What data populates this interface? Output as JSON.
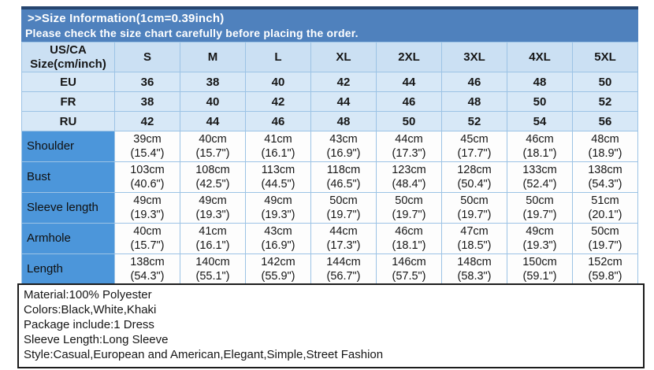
{
  "banner": {
    "line1": ">>Size Information(1cm=0.39inch)",
    "line2": "Please check the size chart carefully before placing the order."
  },
  "size_chart": {
    "corner_label_line1": "US/CA",
    "corner_label_line2": "Size(cm/inch)",
    "size_headers": [
      "S",
      "M",
      "L",
      "XL",
      "2XL",
      "3XL",
      "4XL",
      "5XL"
    ],
    "region_rows": [
      {
        "label": "EU",
        "values": [
          "36",
          "38",
          "40",
          "42",
          "44",
          "46",
          "48",
          "50"
        ]
      },
      {
        "label": "FR",
        "values": [
          "38",
          "40",
          "42",
          "44",
          "46",
          "48",
          "50",
          "52"
        ]
      },
      {
        "label": "RU",
        "values": [
          "42",
          "44",
          "46",
          "48",
          "50",
          "52",
          "54",
          "56"
        ]
      }
    ],
    "measurement_rows": [
      {
        "label": "Shoulder",
        "cm": [
          "39cm",
          "40cm",
          "41cm",
          "43cm",
          "44cm",
          "45cm",
          "46cm",
          "48cm"
        ],
        "inch": [
          "(15.4\")",
          "(15.7\")",
          "(16.1\")",
          "(16.9\")",
          "(17.3\")",
          "(17.7\")",
          "(18.1\")",
          "(18.9\")"
        ]
      },
      {
        "label": "Bust",
        "cm": [
          "103cm",
          "108cm",
          "113cm",
          "118cm",
          "123cm",
          "128cm",
          "133cm",
          "138cm"
        ],
        "inch": [
          "(40.6\")",
          "(42.5\")",
          "(44.5\")",
          "(46.5\")",
          "(48.4\")",
          "(50.4\")",
          "(52.4\")",
          "(54.3\")"
        ]
      },
      {
        "label": "Sleeve length",
        "cm": [
          "49cm",
          "49cm",
          "49cm",
          "50cm",
          "50cm",
          "50cm",
          "50cm",
          "51cm"
        ],
        "inch": [
          "(19.3\")",
          "(19.3\")",
          "(19.3\")",
          "(19.7\")",
          "(19.7\")",
          "(19.7\")",
          "(19.7\")",
          "(20.1\")"
        ]
      },
      {
        "label": "Armhole",
        "cm": [
          "40cm",
          "41cm",
          "43cm",
          "44cm",
          "46cm",
          "47cm",
          "49cm",
          "50cm"
        ],
        "inch": [
          "(15.7\")",
          "(16.1\")",
          "(16.9\")",
          "(17.3\")",
          "(18.1\")",
          "(18.5\")",
          "(19.3\")",
          "(19.7\")"
        ]
      },
      {
        "label": "Length",
        "cm": [
          "138cm",
          "140cm",
          "142cm",
          "144cm",
          "146cm",
          "148cm",
          "150cm",
          "152cm"
        ],
        "inch": [
          "(54.3\")",
          "(55.1\")",
          "(55.9\")",
          "(56.7\")",
          "(57.5\")",
          "(58.3\")",
          "(59.1\")",
          "(59.8\")"
        ]
      }
    ]
  },
  "product_info": {
    "lines": [
      "Material:100% Polyester",
      "Colors:Black,White,Khaki",
      "Package include:1 Dress",
      "Sleeve Length:Long Sleeve",
      "Style:Casual,European and American,Elegant,Simple,Street Fashion"
    ]
  },
  "colors": {
    "banner_blue": "#4f81bd",
    "banner_top_border": "#26456f",
    "header_cell_blue": "#cbe0f3",
    "region_row_blue": "#d7e8f7",
    "measurement_label_blue": "#4c96da",
    "grid_line_blue": "#9cc3e5",
    "text_white": "#ffffff",
    "text_black": "#161616"
  }
}
